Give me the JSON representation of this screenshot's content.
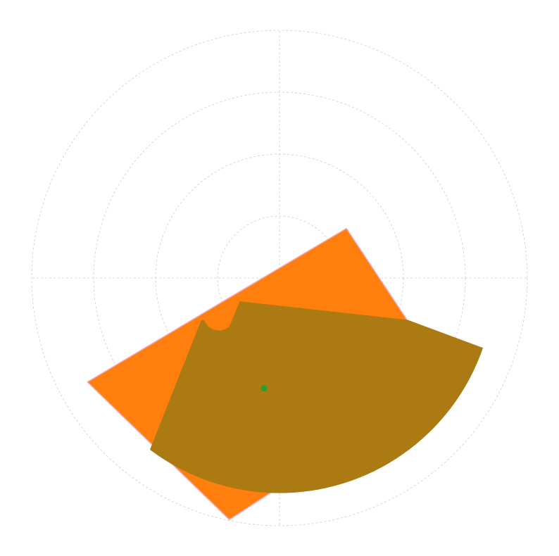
{
  "chart_data": {
    "type": "polar-region",
    "title": "",
    "grid": true,
    "grid_style": "dashed",
    "rlim": [
      0,
      4
    ],
    "radial_rings": [
      1,
      2,
      3,
      4
    ],
    "angular_lines_deg": [
      0,
      90,
      180,
      270
    ],
    "colors": {
      "background": "#ffffff",
      "grid": "#cccccc",
      "outer_region": "#ff7f0e",
      "inner_region": "#ab7a12",
      "center_point": "#2ca02c"
    },
    "regions": [
      {
        "name": "",
        "role": "outer",
        "color": "#ff7f0e",
        "points": [
          [
            1.08,
            0.8
          ],
          [
            2.69,
            -1.63
          ],
          [
            -0.81,
            -3.9
          ],
          [
            -3.1,
            -1.68
          ],
          [
            -0.93,
            -0.39
          ]
        ]
      },
      {
        "name": "",
        "role": "inner",
        "color": "#ab7a12",
        "outline": [
          {
            "kind": "point",
            "xy": [
              -0.64,
              -0.38
            ]
          },
          {
            "kind": "point",
            "xy": [
              2.07,
              -0.68
            ]
          },
          {
            "kind": "arc",
            "center": [
              0.0,
              0.0
            ],
            "radius": 3.47,
            "from_deg": -19,
            "to_deg": -127
          },
          {
            "kind": "point",
            "xy": [
              -1.26,
              -0.68
            ]
          },
          {
            "kind": "arc",
            "center": [
              -0.98,
              -0.6
            ],
            "radius": 0.25,
            "from_deg": 200,
            "to_deg": 315
          }
        ]
      }
    ],
    "points": [
      {
        "name": "",
        "xy": [
          -0.25,
          -1.78
        ],
        "color": "#2ca02c"
      }
    ]
  }
}
